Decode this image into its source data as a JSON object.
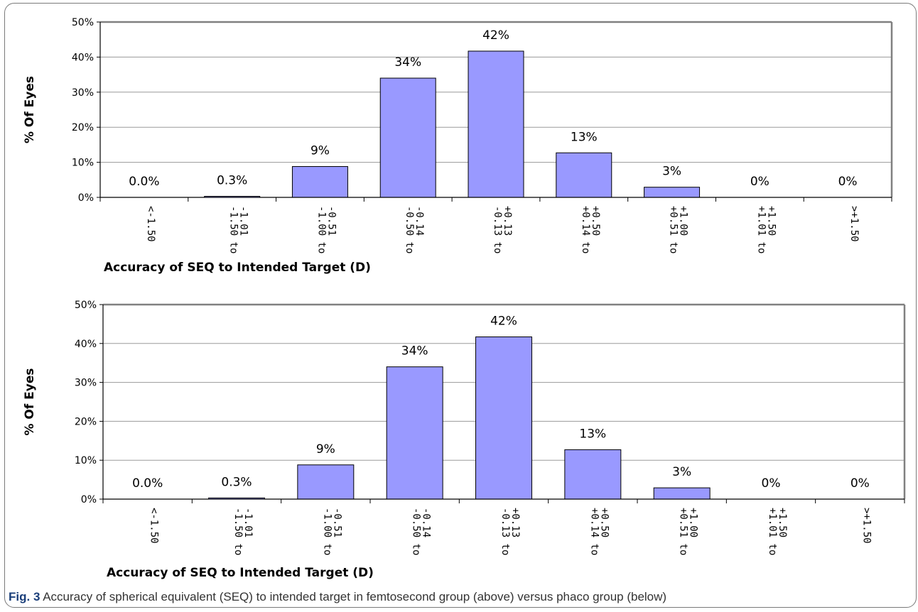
{
  "chart_data": [
    {
      "type": "bar",
      "categories": [
        "<-1.50",
        "-1.50 to -1.01",
        "-1.00 to -0.51",
        "-0.50 to -0.14",
        "-0.13 to +0.13",
        "+0.14 to +0.50",
        "+0.51 to +1.00",
        "+1.01 to +1.50",
        ">+1.50"
      ],
      "category_lines": [
        [
          "<-1.50"
        ],
        [
          "-1.50 to",
          "-1.01"
        ],
        [
          "-1.00 to",
          "-0.51"
        ],
        [
          "-0.50 to",
          "-0.14"
        ],
        [
          "-0.13 to",
          "+0.13"
        ],
        [
          "+0.14 to",
          "+0.50"
        ],
        [
          "+0.51 to",
          "+1.00"
        ],
        [
          "+1.01 to",
          "+1.50"
        ],
        [
          ">+1.50"
        ]
      ],
      "values": [
        0,
        0.3,
        8.8,
        34,
        41.7,
        12.7,
        2.9,
        0,
        0
      ],
      "data_labels": [
        "0.0%",
        "0.3%",
        "9%",
        "34%",
        "42%",
        "13%",
        "3%",
        "0%",
        "0%"
      ],
      "yticks": [
        "0%",
        "10%",
        "20%",
        "30%",
        "40%",
        "50%"
      ],
      "ylim": [
        0,
        50
      ],
      "ylabel": "% Of Eyes",
      "xlabel": "Accuracy of SEQ to Intended Target (D)",
      "grid": true,
      "bar_color": "#9999ff"
    },
    {
      "type": "bar",
      "categories": [
        "<-1.50",
        "-1.50 to -1.01",
        "-1.00 to -0.51",
        "-0.50 to -0.14",
        "-0.13 to +0.13",
        "+0.14 to +0.50",
        "+0.51 to +1.00",
        "+1.01 to +1.50",
        ">+1.50"
      ],
      "category_lines": [
        [
          "<-1.50"
        ],
        [
          "-1.50 to",
          "-1.01"
        ],
        [
          "-1.00 to",
          "-0.51"
        ],
        [
          "-0.50 to",
          "-0.14"
        ],
        [
          "-0.13 to",
          "+0.13"
        ],
        [
          "+0.14 to",
          "+0.50"
        ],
        [
          "+0.51 to",
          "+1.00"
        ],
        [
          "+1.01 to",
          "+1.50"
        ],
        [
          ">+1.50"
        ]
      ],
      "values": [
        0,
        0.3,
        8.8,
        34,
        41.7,
        12.7,
        2.9,
        0,
        0
      ],
      "data_labels": [
        "0.0%",
        "0.3%",
        "9%",
        "34%",
        "42%",
        "13%",
        "3%",
        "0%",
        "0%"
      ],
      "yticks": [
        "0%",
        "10%",
        "20%",
        "30%",
        "40%",
        "50%"
      ],
      "ylim": [
        0,
        50
      ],
      "ylabel": "% Of Eyes",
      "xlabel": "Accuracy of SEQ to Intended Target (D)",
      "grid": true,
      "bar_color": "#9999ff"
    }
  ],
  "caption": {
    "figure_number": "Fig. 3",
    "text": "Accuracy of spherical equivalent (SEQ) to intended target in femtosecond group (above) versus phaco group (below)"
  }
}
